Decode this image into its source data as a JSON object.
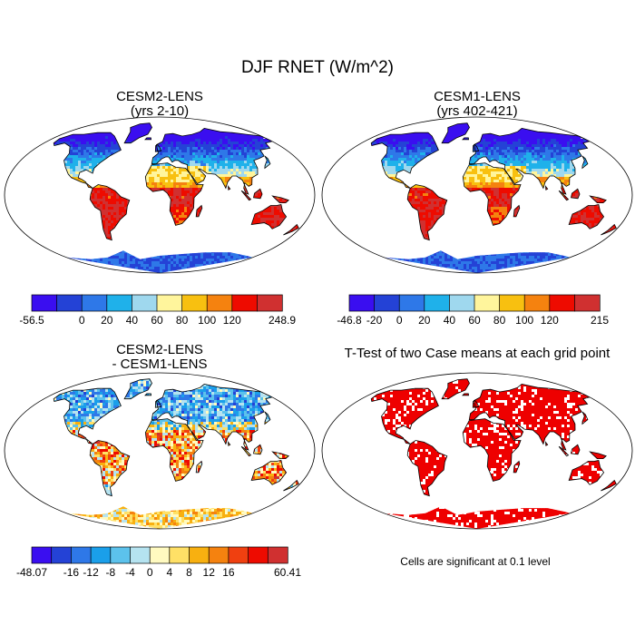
{
  "title": "DJF RNET (W/m^2)",
  "panels": [
    {
      "id": "p1",
      "title_line1": "CESM2-LENS",
      "title_line2": "(yrs 2-10)",
      "field": "rnet",
      "colorbar": {
        "colors": [
          "#3a0ef0",
          "#2442d6",
          "#2e78e8",
          "#1fb1ea",
          "#9fd8ee",
          "#fff59c",
          "#f8c010",
          "#f5820f",
          "#ee0b00",
          "#d03030"
        ],
        "labels": [
          "-56.5",
          "",
          "0",
          "20",
          "40",
          "60",
          "80",
          "100",
          "120",
          "",
          "248.9"
        ]
      }
    },
    {
      "id": "p2",
      "title_line1": "CESM1-LENS",
      "title_line2": "(yrs 402-421)",
      "field": "rnet",
      "colorbar": {
        "colors": [
          "#3a0ef0",
          "#2442d6",
          "#2e78e8",
          "#1fb1ea",
          "#9fd8ee",
          "#fff59c",
          "#f8c010",
          "#f5820f",
          "#ee0b00",
          "#d03030"
        ],
        "labels": [
          "-46.8",
          "-20",
          "0",
          "20",
          "40",
          "60",
          "80",
          "100",
          "120",
          "",
          "215"
        ]
      }
    },
    {
      "id": "p3",
      "title_line1": "CESM2-LENS",
      "title_line2": "- CESM1-LENS",
      "field": "diff",
      "colorbar": {
        "colors": [
          "#3a0ef0",
          "#2442d6",
          "#2e78e8",
          "#1a9fea",
          "#5cc2ec",
          "#b5e3f0",
          "#fffac0",
          "#ffe066",
          "#f8b010",
          "#f5820f",
          "#f04010",
          "#ee0b00",
          "#d03030"
        ],
        "labels": [
          "-48.07",
          "",
          "-16",
          "-12",
          "-8",
          "-4",
          "0",
          "4",
          "8",
          "12",
          "16",
          "",
          "",
          "60.41"
        ]
      }
    },
    {
      "id": "p4",
      "title_line1": "T-Test of two Case means at each grid point",
      "title_line2": "",
      "field": "sig",
      "note": "Cells are significant at 0.1 level"
    }
  ]
}
